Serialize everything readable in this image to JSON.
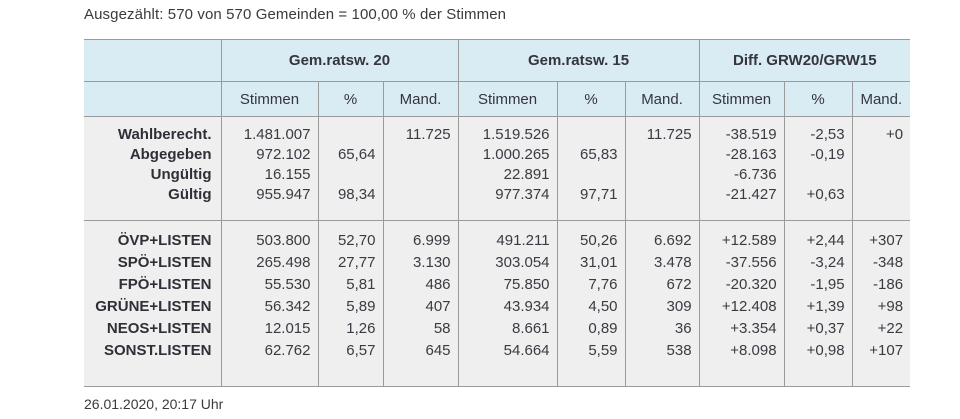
{
  "page": {
    "headline": "Ausgezählt: 570 von 570 Gemeinden = 100,00 % der Stimmen",
    "footer": "26.01.2020, 20:17 Uhr"
  },
  "table": {
    "groups": [
      "Gem.ratsw. 20",
      "Gem.ratsw. 15",
      "Diff. GRW20/GRW15"
    ],
    "subheaders": [
      "Stimmen",
      "%",
      "Mand."
    ],
    "summary_rows": [
      {
        "label": "Wahlberecht.",
        "c": [
          "1.481.007",
          "",
          "11.725",
          "1.519.526",
          "",
          "11.725",
          "-38.519",
          "-2,53",
          "+0"
        ]
      },
      {
        "label": "Abgegeben",
        "c": [
          "972.102",
          "65,64",
          "",
          "1.000.265",
          "65,83",
          "",
          "-28.163",
          "-0,19",
          ""
        ]
      },
      {
        "label": "Ungültig",
        "c": [
          "16.155",
          "",
          "",
          "22.891",
          "",
          "",
          "-6.736",
          "",
          ""
        ]
      },
      {
        "label": "Gültig",
        "c": [
          "955.947",
          "98,34",
          "",
          "977.374",
          "97,71",
          "",
          "-21.427",
          "+0,63",
          ""
        ]
      }
    ],
    "party_rows": [
      {
        "label": "ÖVP+LISTEN",
        "c": [
          "503.800",
          "52,70",
          "6.999",
          "491.211",
          "50,26",
          "6.692",
          "+12.589",
          "+2,44",
          "+307"
        ]
      },
      {
        "label": "SPÖ+LISTEN",
        "c": [
          "265.498",
          "27,77",
          "3.130",
          "303.054",
          "31,01",
          "3.478",
          "-37.556",
          "-3,24",
          "-348"
        ]
      },
      {
        "label": "FPÖ+LISTEN",
        "c": [
          "55.530",
          "5,81",
          "486",
          "75.850",
          "7,76",
          "672",
          "-20.320",
          "-1,95",
          "-186"
        ]
      },
      {
        "label": "GRÜNE+LISTEN",
        "c": [
          "56.342",
          "5,89",
          "407",
          "43.934",
          "4,50",
          "309",
          "+12.408",
          "+1,39",
          "+98"
        ]
      },
      {
        "label": "NEOS+LISTEN",
        "c": [
          "12.015",
          "1,26",
          "58",
          "8.661",
          "0,89",
          "36",
          "+3.354",
          "+0,37",
          "+22"
        ]
      },
      {
        "label": "SONST.LISTEN",
        "c": [
          "62.762",
          "6,57",
          "645",
          "54.664",
          "5,59",
          "538",
          "+8.098",
          "+0,98",
          "+107"
        ]
      }
    ]
  },
  "colors": {
    "header_bg": "#d9ebf3",
    "body_bg": "#efefef",
    "grid": "#9a9a9a",
    "text": "#35353d",
    "background": "#ffffff"
  }
}
